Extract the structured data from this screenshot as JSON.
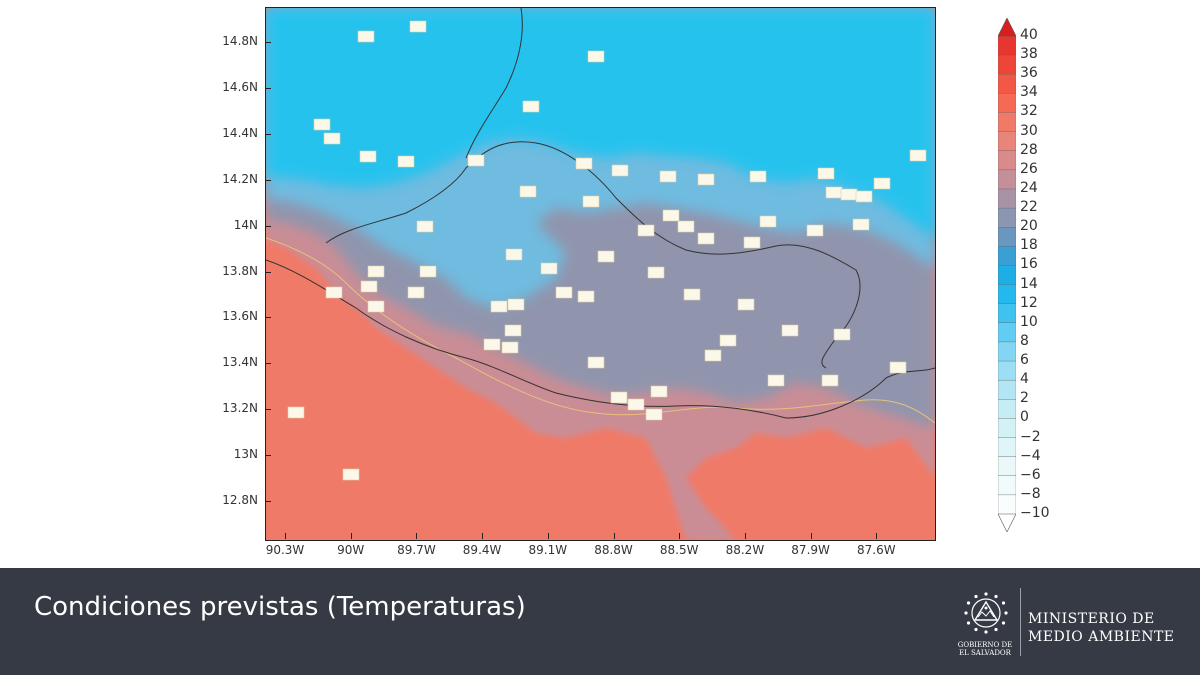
{
  "map": {
    "lat_labels": [
      "14.8N",
      "14.6N",
      "14.4N",
      "14.2N",
      "14N",
      "13.8N",
      "13.6N",
      "13.4N",
      "13.2N",
      "13N",
      "12.8N"
    ],
    "lon_labels": [
      "90.3W",
      "90W",
      "89.7W",
      "89.4W",
      "89.1W",
      "88.8W",
      "88.5W",
      "88.2W",
      "87.9W",
      "87.6W"
    ],
    "colors": {
      "ocean_warm": "#f07a68",
      "coastal": "#ca8d95",
      "land": "#9095ad",
      "highland": "#6fbbe0",
      "north": "#28c2ee",
      "contour": "#e8c07a",
      "border": "#333333"
    }
  },
  "colorbar": {
    "levels": [
      "40",
      "38",
      "36",
      "34",
      "32",
      "30",
      "28",
      "26",
      "24",
      "22",
      "20",
      "18",
      "16",
      "14",
      "12",
      "10",
      "8",
      "6",
      "4",
      "2",
      "0",
      "−2",
      "−4",
      "−6",
      "−8",
      "−10"
    ],
    "colors": [
      "#e8352f",
      "#ee4538",
      "#f25845",
      "#f56a55",
      "#f07a68",
      "#e8847a",
      "#d88b8a",
      "#c48f98",
      "#a893a6",
      "#8c96b2",
      "#6a97bf",
      "#3a9fd3",
      "#1eaee6",
      "#24b9ee",
      "#3ec2f0",
      "#62cdf2",
      "#82d6f3",
      "#9cdff4",
      "#b2e6f4",
      "#c6ecf5",
      "#d4f1f6",
      "#e0f5f8",
      "#eaf8fa",
      "#f2fbfc",
      "#fafdfe"
    ]
  },
  "footer": {
    "title": "Condiciones previstas (Temperaturas)",
    "ministry_line1": "MINISTERIO DE",
    "ministry_line2": "MEDIO AMBIENTE",
    "emblem_caption_line1": "GOBIERNO DE",
    "emblem_caption_line2": "EL SALVADOR"
  }
}
